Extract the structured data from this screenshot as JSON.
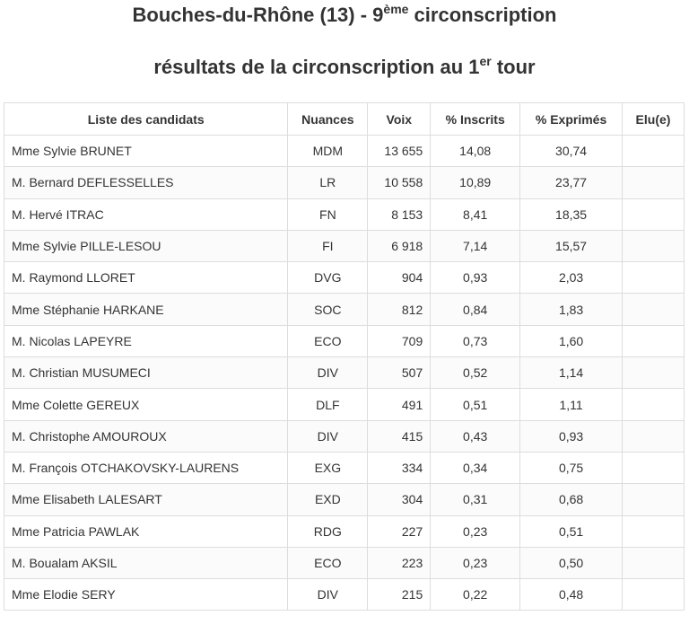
{
  "title": {
    "main": "Bouches-du-Rhône (13) - 9",
    "sup": "ème",
    "tail": " circonscription"
  },
  "subtitle": {
    "main": "résultats de la circonscription au 1",
    "sup": "er",
    "tail": " tour"
  },
  "table": {
    "headers": [
      "Liste des candidats",
      "Nuances",
      "Voix",
      "% Inscrits",
      "% Exprimés",
      "Elu(e)"
    ],
    "rows": [
      {
        "name": "Mme Sylvie BRUNET",
        "nuance": "MDM",
        "voix": "13 655",
        "inscrits": "14,08",
        "exprimes": "30,74",
        "elu": ""
      },
      {
        "name": "M. Bernard DEFLESSELLES",
        "nuance": "LR",
        "voix": "10 558",
        "inscrits": "10,89",
        "exprimes": "23,77",
        "elu": ""
      },
      {
        "name": "M. Hervé ITRAC",
        "nuance": "FN",
        "voix": "8 153",
        "inscrits": "8,41",
        "exprimes": "18,35",
        "elu": ""
      },
      {
        "name": "Mme Sylvie PILLE-LESOU",
        "nuance": "FI",
        "voix": "6 918",
        "inscrits": "7,14",
        "exprimes": "15,57",
        "elu": ""
      },
      {
        "name": "M. Raymond LLORET",
        "nuance": "DVG",
        "voix": "904",
        "inscrits": "0,93",
        "exprimes": "2,03",
        "elu": ""
      },
      {
        "name": "Mme Stéphanie HARKANE",
        "nuance": "SOC",
        "voix": "812",
        "inscrits": "0,84",
        "exprimes": "1,83",
        "elu": ""
      },
      {
        "name": "M. Nicolas LAPEYRE",
        "nuance": "ECO",
        "voix": "709",
        "inscrits": "0,73",
        "exprimes": "1,60",
        "elu": ""
      },
      {
        "name": "M. Christian MUSUMECI",
        "nuance": "DIV",
        "voix": "507",
        "inscrits": "0,52",
        "exprimes": "1,14",
        "elu": ""
      },
      {
        "name": "Mme Colette GEREUX",
        "nuance": "DLF",
        "voix": "491",
        "inscrits": "0,51",
        "exprimes": "1,11",
        "elu": ""
      },
      {
        "name": "M. Christophe AMOUROUX",
        "nuance": "DIV",
        "voix": "415",
        "inscrits": "0,43",
        "exprimes": "0,93",
        "elu": ""
      },
      {
        "name": "M. François OTCHAKOVSKY-LAURENS",
        "nuance": "EXG",
        "voix": "334",
        "inscrits": "0,34",
        "exprimes": "0,75",
        "elu": ""
      },
      {
        "name": "Mme Elisabeth LALESART",
        "nuance": "EXD",
        "voix": "304",
        "inscrits": "0,31",
        "exprimes": "0,68",
        "elu": ""
      },
      {
        "name": "Mme Patricia PAWLAK",
        "nuance": "RDG",
        "voix": "227",
        "inscrits": "0,23",
        "exprimes": "0,51",
        "elu": ""
      },
      {
        "name": "M. Boualam AKSIL",
        "nuance": "ECO",
        "voix": "223",
        "inscrits": "0,23",
        "exprimes": "0,50",
        "elu": ""
      },
      {
        "name": "Mme Elodie SERY",
        "nuance": "DIV",
        "voix": "215",
        "inscrits": "0,22",
        "exprimes": "0,48",
        "elu": ""
      }
    ]
  }
}
